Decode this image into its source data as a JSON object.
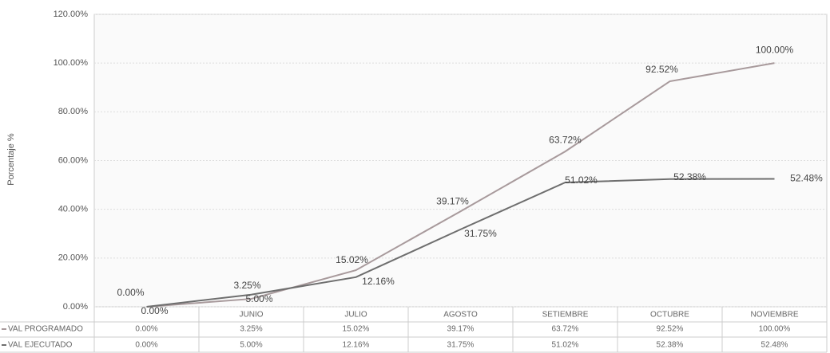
{
  "chart_data": {
    "type": "line",
    "y_label": "Porcentaje %",
    "categories": [
      null,
      "JUNIO",
      "JULIO",
      "AGOSTO",
      "SETIEMBRE",
      "OCTUBRE",
      "NOVIEMBRE"
    ],
    "series": [
      {
        "name": "VAL PROGRAMADO",
        "color": "#a89a9c",
        "values": [
          0.0,
          3.25,
          15.02,
          39.17,
          63.72,
          92.52,
          100.0
        ],
        "value_labels": [
          "0.00%",
          "3.25%",
          "15.02%",
          "39.17%",
          "63.72%",
          "92.52%",
          "100.00%"
        ]
      },
      {
        "name": "VAL EJECUTADO",
        "color": "#6e6e6e",
        "values": [
          0.0,
          5.0,
          12.16,
          31.75,
          51.02,
          52.38,
          52.48
        ],
        "value_labels": [
          "0.00%",
          "5.00%",
          "12.16%",
          "31.75%",
          "51.02%",
          "52.38%",
          "52.48%"
        ]
      }
    ],
    "ylim": [
      0,
      120
    ],
    "yticks": [
      {
        "value": 0,
        "label": "0.00%"
      },
      {
        "value": 20,
        "label": "20.00%"
      },
      {
        "value": 40,
        "label": "40.00%"
      },
      {
        "value": 60,
        "label": "60.00%"
      },
      {
        "value": 80,
        "label": "80.00%"
      },
      {
        "value": 100,
        "label": "100.00%"
      },
      {
        "value": 120,
        "label": "120.00%"
      }
    ],
    "grid": true
  }
}
